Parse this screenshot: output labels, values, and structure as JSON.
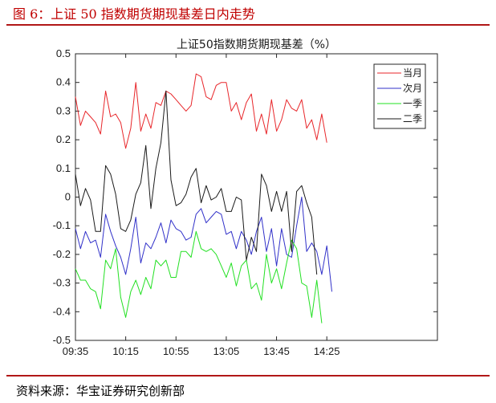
{
  "figure": {
    "title": "图 6：上证 50 指数期货期现基差日内走势",
    "source": "资料来源：华宝证券研究创新部"
  },
  "chart_data": {
    "type": "line",
    "title": "上证50指数期货期现基差（%）",
    "xlabel": "",
    "ylabel": "",
    "ylim": [
      -0.5,
      0.5
    ],
    "yticks": [
      -0.5,
      -0.4,
      -0.3,
      -0.2,
      -0.1,
      0,
      0.1,
      0.2,
      0.3,
      0.4,
      0.5
    ],
    "xlim": [
      0,
      72
    ],
    "xticks": [
      {
        "index": 0,
        "label": "09:35"
      },
      {
        "index": 10,
        "label": "10:15"
      },
      {
        "index": 20,
        "label": "10:55"
      },
      {
        "index": 30,
        "label": "13:05"
      },
      {
        "index": 40,
        "label": "13:45"
      },
      {
        "index": 50,
        "label": "14:25"
      }
    ],
    "grid": false,
    "legend_position": "top-right",
    "series": [
      {
        "name": "当月",
        "color": "#e8262a",
        "values": [
          0.35,
          0.25,
          0.3,
          0.28,
          0.26,
          0.22,
          0.37,
          0.28,
          0.29,
          0.26,
          0.17,
          0.24,
          0.4,
          0.23,
          0.29,
          0.24,
          0.33,
          0.32,
          0.37,
          0.36,
          0.34,
          0.32,
          0.3,
          0.32,
          0.43,
          0.42,
          0.35,
          0.34,
          0.39,
          0.4,
          0.4,
          0.3,
          0.33,
          0.27,
          0.33,
          0.36,
          0.23,
          0.29,
          0.22,
          0.34,
          0.23,
          0.27,
          0.34,
          0.31,
          0.3,
          0.34,
          0.24,
          0.27,
          0.2,
          0.29,
          0.19
        ]
      },
      {
        "name": "次月",
        "color": "#3131c9",
        "values": [
          -0.11,
          -0.18,
          -0.12,
          -0.16,
          -0.15,
          -0.21,
          -0.06,
          -0.12,
          -0.17,
          -0.21,
          -0.27,
          -0.18,
          -0.07,
          -0.23,
          -0.16,
          -0.18,
          -0.14,
          -0.09,
          -0.16,
          -0.08,
          -0.11,
          -0.12,
          -0.15,
          -0.14,
          -0.06,
          -0.04,
          -0.09,
          -0.07,
          -0.05,
          -0.06,
          -0.13,
          -0.12,
          -0.18,
          -0.12,
          -0.15,
          -0.2,
          -0.12,
          -0.07,
          -0.19,
          -0.11,
          -0.24,
          -0.11,
          -0.2,
          -0.21,
          -0.1,
          -0.0,
          -0.19,
          -0.16,
          -0.19,
          -0.27,
          -0.17,
          -0.33
        ]
      },
      {
        "name": "一季",
        "color": "#22e022",
        "values": [
          -0.25,
          -0.29,
          -0.29,
          -0.32,
          -0.33,
          -0.39,
          -0.22,
          -0.25,
          -0.18,
          -0.35,
          -0.42,
          -0.33,
          -0.29,
          -0.34,
          -0.28,
          -0.32,
          -0.22,
          -0.24,
          -0.22,
          -0.28,
          -0.28,
          -0.19,
          -0.19,
          -0.21,
          -0.12,
          -0.18,
          -0.19,
          -0.18,
          -0.2,
          -0.24,
          -0.28,
          -0.23,
          -0.31,
          -0.24,
          -0.22,
          -0.32,
          -0.3,
          -0.36,
          -0.2,
          -0.3,
          -0.25,
          -0.32,
          -0.23,
          -0.15,
          -0.18,
          -0.3,
          -0.31,
          -0.42,
          -0.29,
          -0.44
        ]
      },
      {
        "name": "二季",
        "color": "#1a1a1a",
        "values": [
          0.08,
          -0.03,
          0.03,
          -0.01,
          -0.12,
          -0.12,
          0.11,
          0.08,
          0.01,
          -0.11,
          -0.12,
          -0.08,
          0.01,
          0.05,
          0.18,
          -0.04,
          0.1,
          0.19,
          0.37,
          0.06,
          -0.03,
          -0.02,
          0.01,
          0.07,
          0.1,
          -0.02,
          0.04,
          -0.01,
          0.0,
          0.03,
          -0.05,
          -0.05,
          0.0,
          -0.01,
          -0.22,
          -0.14,
          -0.19,
          0.08,
          0.04,
          -0.05,
          0.02,
          -0.05,
          0.02,
          -0.19,
          0.02,
          0.04,
          -0.02,
          -0.07,
          -0.27
        ]
      }
    ]
  }
}
